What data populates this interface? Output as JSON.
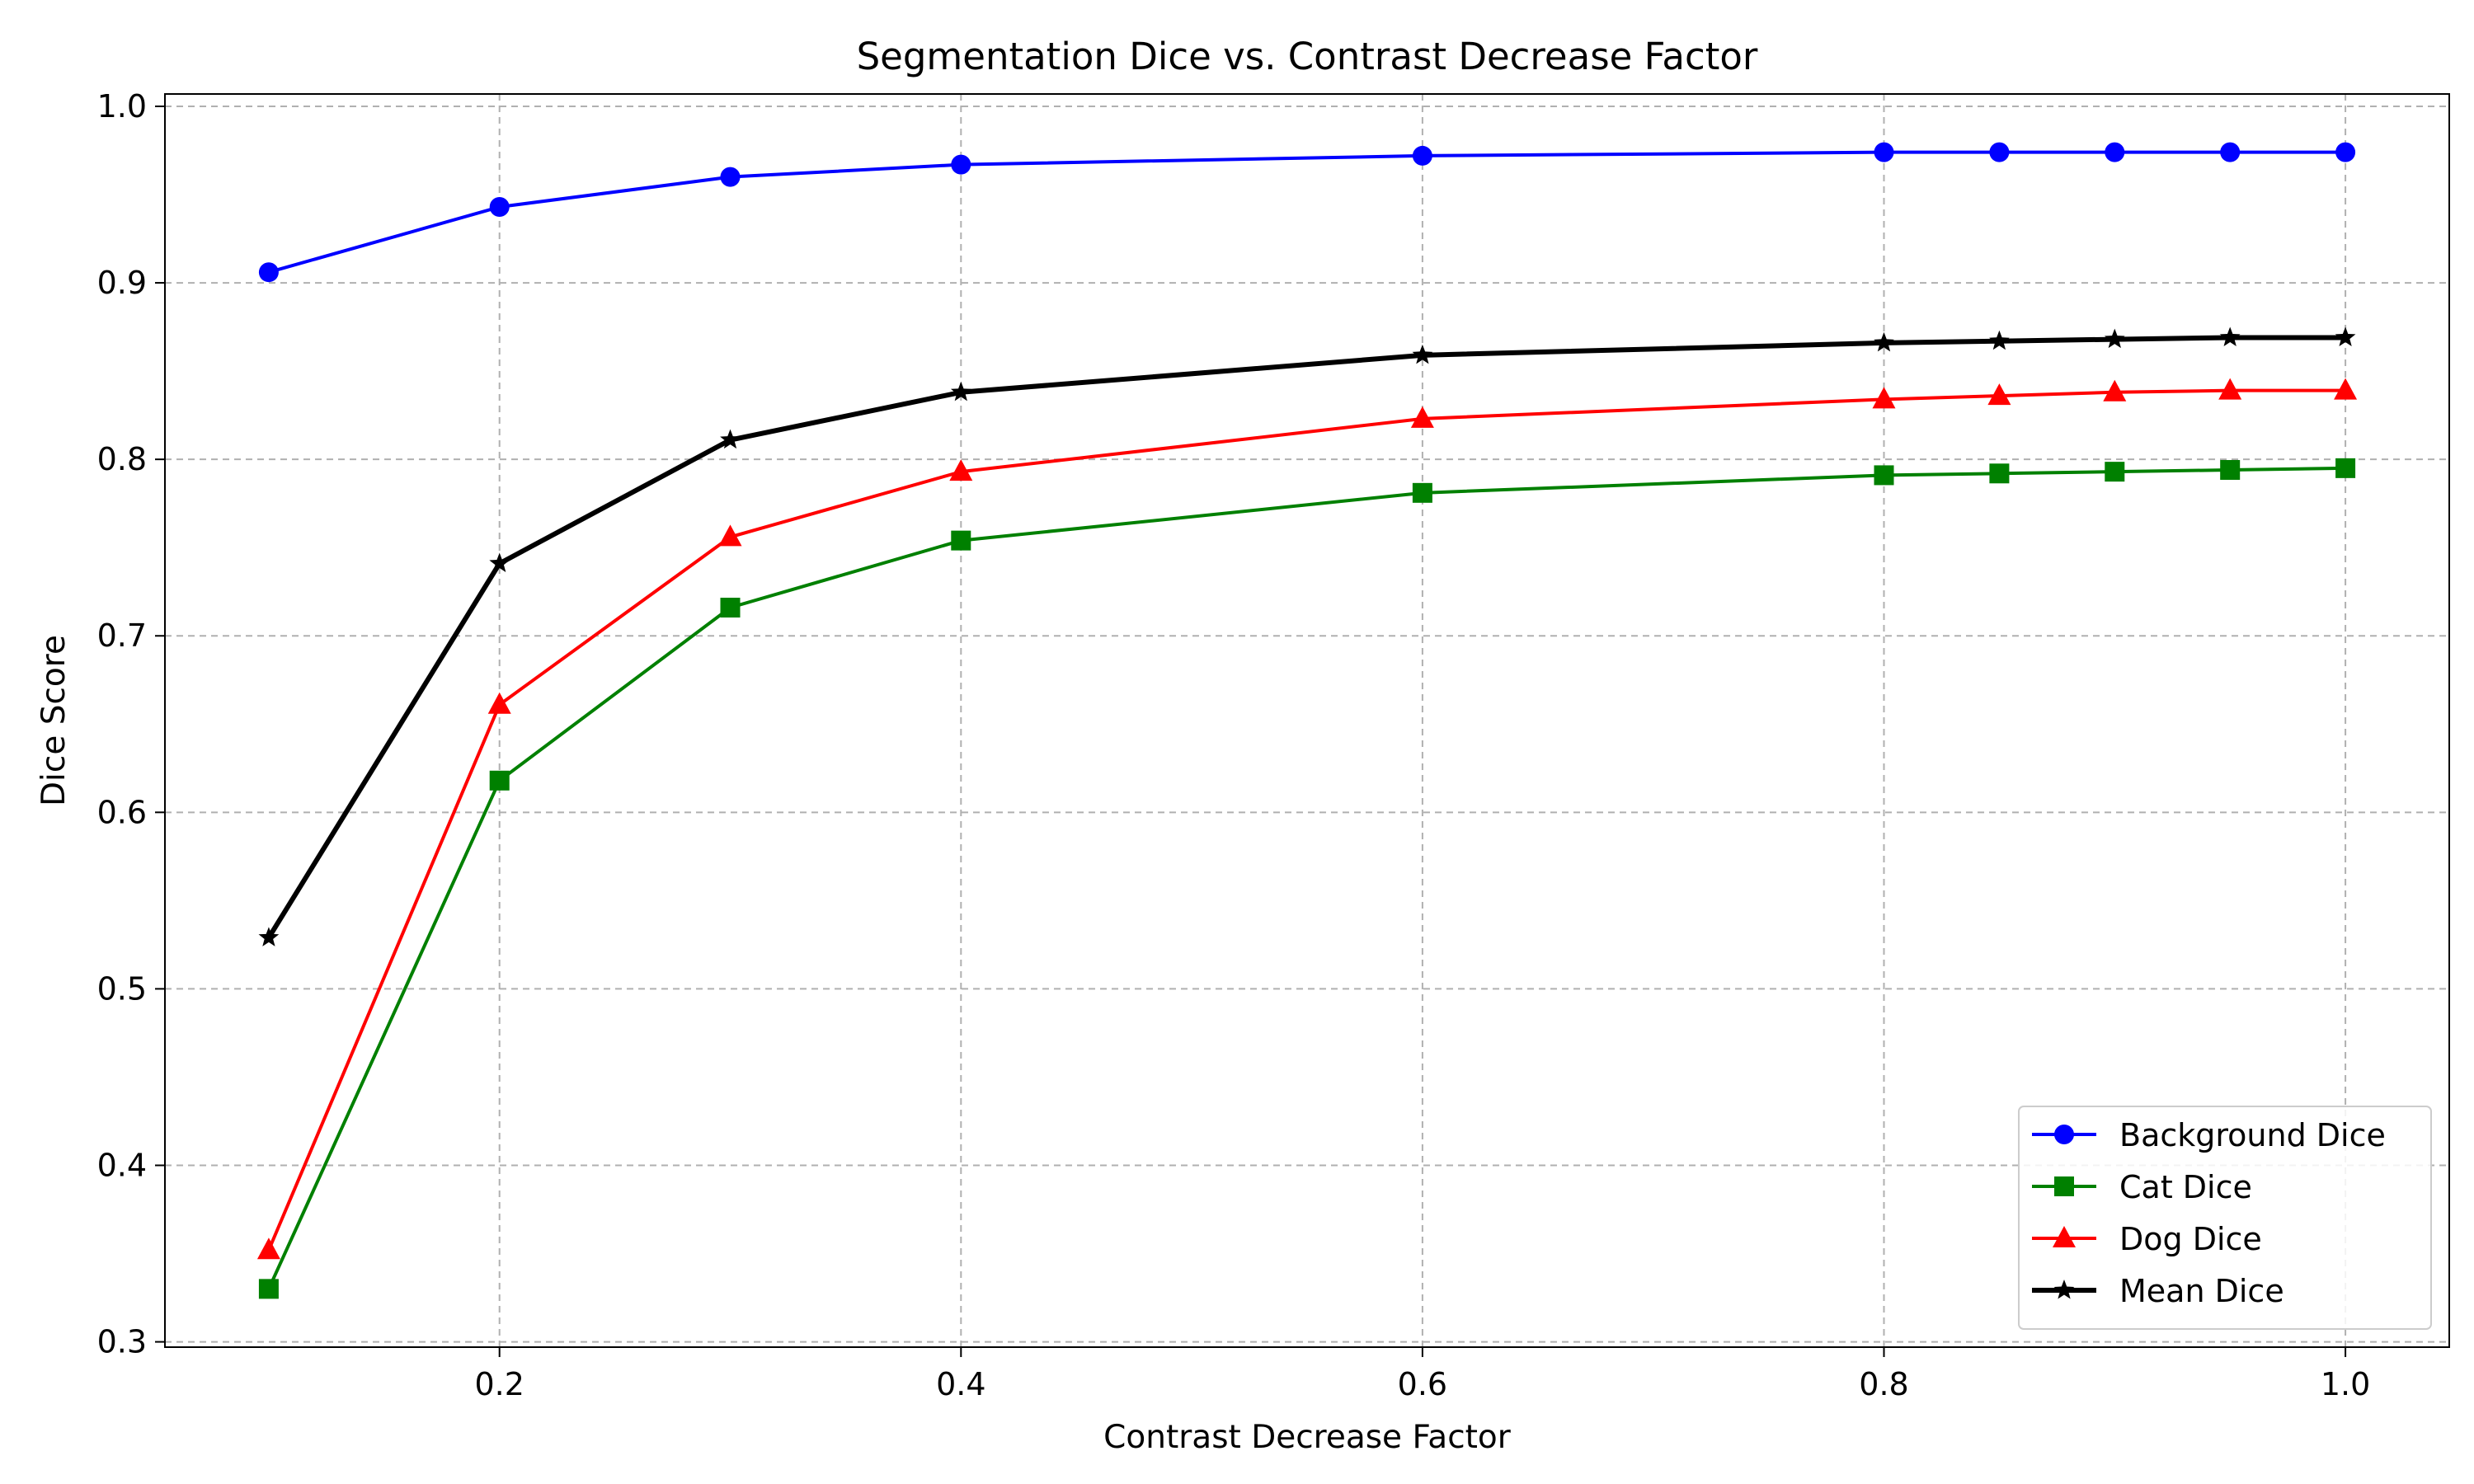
{
  "chart_data": {
    "type": "line",
    "title": "Segmentation Dice vs. Contrast Decrease Factor",
    "xlabel": "Contrast Decrease Factor",
    "ylabel": "Dice Score",
    "xlim": [
      0.055,
      1.045
    ],
    "ylim": [
      0.297,
      1.007
    ],
    "xticks": [
      0.2,
      0.4,
      0.6,
      0.8,
      1.0
    ],
    "xtick_labels": [
      "0.2",
      "0.4",
      "0.6",
      "0.8",
      "1.0"
    ],
    "yticks": [
      0.3,
      0.4,
      0.5,
      0.6,
      0.7,
      0.8,
      0.9,
      1.0
    ],
    "ytick_labels": [
      "0.3",
      "0.4",
      "0.5",
      "0.6",
      "0.7",
      "0.8",
      "0.9",
      "1.0"
    ],
    "grid": true,
    "legend_position": "bottom-right",
    "x": [
      0.1,
      0.2,
      0.3,
      0.4,
      0.6,
      0.8,
      0.85,
      0.9,
      0.95,
      1.0
    ],
    "series": [
      {
        "name": "Background Dice",
        "color": "#0000ff",
        "marker": "circle",
        "values": [
          0.906,
          0.943,
          0.96,
          0.967,
          0.972,
          0.974,
          0.974,
          0.974,
          0.974,
          0.974
        ]
      },
      {
        "name": "Cat Dice",
        "color": "#008000",
        "marker": "square",
        "values": [
          0.33,
          0.618,
          0.716,
          0.754,
          0.781,
          0.791,
          0.792,
          0.793,
          0.794,
          0.795
        ]
      },
      {
        "name": "Dog Dice",
        "color": "#ff0000",
        "marker": "triangle",
        "values": [
          0.352,
          0.661,
          0.756,
          0.793,
          0.823,
          0.834,
          0.836,
          0.838,
          0.839,
          0.839
        ]
      },
      {
        "name": "Mean Dice",
        "color": "#000000",
        "marker": "star",
        "bold": true,
        "values": [
          0.529,
          0.741,
          0.811,
          0.838,
          0.859,
          0.866,
          0.867,
          0.868,
          0.869,
          0.869
        ]
      }
    ]
  }
}
